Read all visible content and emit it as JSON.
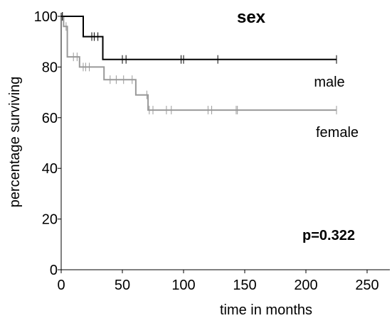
{
  "chart_data": {
    "type": "line",
    "title": "sex",
    "xlabel": "time in months",
    "ylabel": "percentage surviving",
    "xlim": [
      0,
      250
    ],
    "ylim": [
      0,
      100
    ],
    "xticks": [
      0,
      50,
      100,
      150,
      200,
      250
    ],
    "yticks": [
      0,
      20,
      40,
      60,
      80,
      100
    ],
    "annotation": "p=0.322",
    "grid": false,
    "series": [
      {
        "name": "male",
        "color": "#000000",
        "steps": [
          [
            0,
            100
          ],
          [
            18,
            100
          ],
          [
            18,
            92
          ],
          [
            34,
            92
          ],
          [
            34,
            83
          ],
          [
            225,
            83
          ]
        ],
        "censor_x": [
          1,
          25,
          27,
          30,
          50,
          53,
          98,
          100,
          128,
          225
        ]
      },
      {
        "name": "female",
        "color": "#999999",
        "steps": [
          [
            0,
            100
          ],
          [
            2,
            100
          ],
          [
            2,
            96
          ],
          [
            5,
            96
          ],
          [
            5,
            84
          ],
          [
            15,
            84
          ],
          [
            15,
            80
          ],
          [
            35,
            80
          ],
          [
            35,
            75
          ],
          [
            61,
            75
          ],
          [
            61,
            69
          ],
          [
            71,
            69
          ],
          [
            71,
            63
          ],
          [
            225,
            63
          ]
        ],
        "censor_x": [
          1,
          4,
          10,
          13,
          18,
          20,
          23,
          40,
          45,
          51,
          58,
          70,
          72,
          75,
          86,
          90,
          120,
          123,
          143,
          144,
          225
        ]
      }
    ]
  }
}
